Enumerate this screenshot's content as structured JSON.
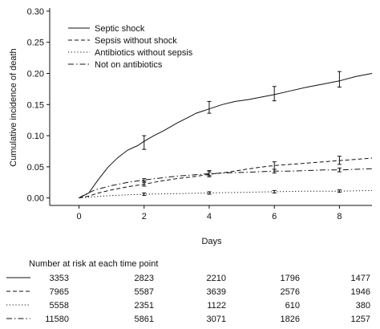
{
  "chart_data": {
    "type": "line",
    "title": "",
    "xlabel": "Days",
    "ylabel": "Cumulative incidence of death",
    "xlim": [
      -0.9,
      9.0
    ],
    "ylim": [
      -0.012,
      0.305
    ],
    "xticks": [
      0,
      2,
      4,
      6,
      8
    ],
    "xtick_labels": [
      "0",
      "2",
      "4",
      "6",
      "8"
    ],
    "yticks": [
      0.0,
      0.05,
      0.1,
      0.15,
      0.2,
      0.25,
      0.3
    ],
    "ytick_labels": [
      "0.00",
      "0.05",
      "0.10",
      "0.15",
      "0.20",
      "0.25",
      "0.30"
    ],
    "grid": false,
    "legend_position": "top-left",
    "series": [
      {
        "name": "Septic shock",
        "dash": "solid",
        "x": [
          0,
          0.3,
          0.6,
          0.9,
          1.2,
          1.5,
          1.8,
          2.0,
          2.3,
          2.6,
          3.0,
          3.3,
          3.6,
          4.0,
          4.4,
          4.8,
          5.2,
          5.6,
          6.0,
          6.5,
          7.0,
          7.5,
          8.0,
          8.5,
          9.0
        ],
        "y": [
          0,
          0.008,
          0.03,
          0.05,
          0.065,
          0.077,
          0.084,
          0.091,
          0.1,
          0.108,
          0.12,
          0.128,
          0.136,
          0.143,
          0.15,
          0.155,
          0.158,
          0.162,
          0.166,
          0.172,
          0.178,
          0.183,
          0.188,
          0.195,
          0.2
        ],
        "error_bars": [
          {
            "x": 2,
            "y": 0.088,
            "low": 0.078,
            "high": 0.1
          },
          {
            "x": 4,
            "y": 0.145,
            "low": 0.136,
            "high": 0.155
          },
          {
            "x": 6,
            "y": 0.167,
            "low": 0.156,
            "high": 0.179
          },
          {
            "x": 8,
            "y": 0.19,
            "low": 0.178,
            "high": 0.203
          }
        ]
      },
      {
        "name": "Sepsis without shock",
        "dash": "dashed",
        "x": [
          0,
          0.3,
          0.6,
          1.0,
          1.5,
          2.0,
          2.5,
          3.0,
          3.5,
          4.0,
          4.5,
          5.0,
          5.5,
          6.0,
          6.5,
          7.0,
          7.5,
          8.0,
          8.5,
          9.0
        ],
        "y": [
          0,
          0.003,
          0.008,
          0.013,
          0.018,
          0.022,
          0.027,
          0.031,
          0.034,
          0.038,
          0.041,
          0.045,
          0.049,
          0.052,
          0.054,
          0.056,
          0.058,
          0.06,
          0.062,
          0.064
        ],
        "error_bars": [
          {
            "x": 2,
            "y": 0.023,
            "low": 0.019,
            "high": 0.027
          },
          {
            "x": 4,
            "y": 0.039,
            "low": 0.034,
            "high": 0.044
          },
          {
            "x": 6,
            "y": 0.052,
            "low": 0.046,
            "high": 0.058
          },
          {
            "x": 8,
            "y": 0.06,
            "low": 0.054,
            "high": 0.067
          }
        ]
      },
      {
        "name": "Antibiotics without sepsis",
        "dash": "dotted",
        "x": [
          0,
          0.5,
          1.0,
          1.5,
          2.0,
          3.0,
          4.0,
          5.0,
          6.0,
          7.0,
          8.0,
          9.0
        ],
        "y": [
          0,
          0.002,
          0.004,
          0.005,
          0.006,
          0.007,
          0.008,
          0.009,
          0.01,
          0.011,
          0.011,
          0.012
        ],
        "error_bars": [
          {
            "x": 2,
            "y": 0.006,
            "low": 0.004,
            "high": 0.008
          },
          {
            "x": 4,
            "y": 0.008,
            "low": 0.006,
            "high": 0.01
          },
          {
            "x": 6,
            "y": 0.01,
            "low": 0.008,
            "high": 0.012
          },
          {
            "x": 8,
            "y": 0.011,
            "low": 0.009,
            "high": 0.013
          }
        ]
      },
      {
        "name": "Not on antibiotics",
        "dash": "dashdot",
        "x": [
          0,
          0.2,
          0.5,
          1.0,
          1.5,
          2.0,
          2.5,
          3.0,
          3.5,
          4.0,
          4.5,
          5.0,
          5.5,
          6.0,
          6.5,
          7.0,
          7.5,
          8.0,
          8.5,
          9.0
        ],
        "y": [
          0,
          0.006,
          0.013,
          0.02,
          0.025,
          0.029,
          0.032,
          0.035,
          0.037,
          0.039,
          0.04,
          0.041,
          0.042,
          0.043,
          0.043,
          0.044,
          0.045,
          0.045,
          0.046,
          0.047
        ],
        "error_bars": [
          {
            "x": 2,
            "y": 0.028,
            "low": 0.025,
            "high": 0.031
          },
          {
            "x": 4,
            "y": 0.039,
            "low": 0.036,
            "high": 0.042
          },
          {
            "x": 6,
            "y": 0.043,
            "low": 0.04,
            "high": 0.046
          },
          {
            "x": 8,
            "y": 0.045,
            "low": 0.042,
            "high": 0.048
          }
        ]
      }
    ],
    "risk_table": {
      "title": "Number at risk at each time point",
      "rows": [
        {
          "dash": "solid",
          "values": [
            "3353",
            "2823",
            "2210",
            "1796",
            "1477"
          ]
        },
        {
          "dash": "dashed",
          "values": [
            "7965",
            "5587",
            "3639",
            "2576",
            "1946"
          ]
        },
        {
          "dash": "dotted",
          "values": [
            "5558",
            "2351",
            "1122",
            "610",
            "380"
          ]
        },
        {
          "dash": "dashdot",
          "values": [
            "11580",
            "5861",
            "3071",
            "1826",
            "1257"
          ]
        }
      ]
    }
  }
}
